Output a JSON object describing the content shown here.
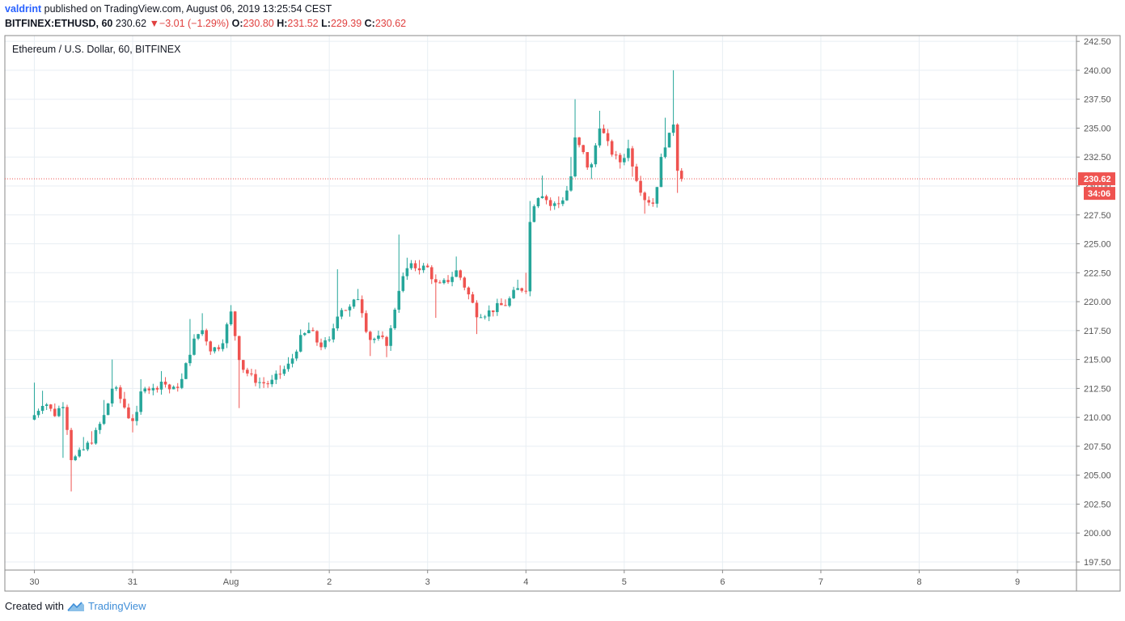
{
  "header": {
    "author": "valdrint",
    "published_text": "published on TradingView.com, August 06, 2019 13:25:54 CEST",
    "symbol": "BITFINEX:ETHUSD, 60",
    "last": "230.62",
    "change_arrow": "▼",
    "change": "−3.01 (−1.29%)",
    "o_label": "O:",
    "o_value": "230.80",
    "h_label": "H:",
    "h_value": "231.52",
    "l_label": "L:",
    "l_value": "229.39",
    "c_label": "C:",
    "c_value": "230.62"
  },
  "footer": {
    "created_with": "Created with",
    "brand": "TradingView",
    "logo_icon": "tradingview-logo-icon"
  },
  "colors": {
    "up": "#26a69a",
    "down": "#ef5350",
    "grid": "#e8eef3",
    "axis": "#555555",
    "price_tag": "#ef5350",
    "author": "#2962ff",
    "change_negative": "#e0403f"
  },
  "chart_data": {
    "type": "candlestick",
    "title": "Ethereum / U.S. Dollar, 60, BITFINEX",
    "x_unit": "days since Jul 30 2019 00:00",
    "x_tick_labels": [
      "30",
      "31",
      "Aug",
      "2",
      "3",
      "4",
      "5",
      "6",
      "7",
      "8",
      "9"
    ],
    "x_tick_values": [
      0,
      1,
      2,
      3,
      4,
      5,
      6,
      7,
      8,
      9,
      10
    ],
    "xlim": [
      -0.3,
      10.6
    ],
    "ylim": [
      196.8,
      243
    ],
    "y_ticks": [
      197.5,
      200,
      202.5,
      205,
      207.5,
      210,
      212.5,
      215,
      217.5,
      220,
      222.5,
      225,
      227.5,
      230,
      232.5,
      235,
      237.5,
      240,
      242.5
    ],
    "y_tick_labels": [
      "197.50",
      "200.00",
      "202.50",
      "205.00",
      "207.50",
      "210.00",
      "212.50",
      "215.00",
      "217.50",
      "220.00",
      "222.50",
      "225.00",
      "227.50",
      "230.00",
      "232.50",
      "235.00",
      "237.50",
      "240.00",
      "242.50"
    ],
    "grid": true,
    "last_price": 230.62,
    "last_price_label": "230.62",
    "countdown_label": "34:06",
    "anchors": [
      [
        0,
        210.2,
        213
      ],
      [
        0.1,
        211.5,
        212.3
      ],
      [
        0.2,
        210.2,
        211.2
      ],
      [
        0.3,
        211.3,
        206.5
      ],
      [
        0.38,
        206.2,
        203.6
      ],
      [
        0.5,
        207.2,
        208.3
      ],
      [
        0.6,
        208.2,
        208.8
      ],
      [
        0.72,
        210.3,
        211.5
      ],
      [
        0.8,
        212.8,
        215
      ],
      [
        0.9,
        211.2,
        212.2
      ],
      [
        0.98,
        209.7,
        208.7
      ],
      [
        1.05,
        210.2,
        211
      ],
      [
        1.1,
        213,
        213.3
      ],
      [
        1.2,
        212.3,
        212.9
      ],
      [
        1.3,
        213.2,
        214
      ],
      [
        1.4,
        212.2,
        212.5
      ],
      [
        1.5,
        213.2,
        213.8
      ],
      [
        1.6,
        216.2,
        218.5
      ],
      [
        1.7,
        217.7,
        219
      ],
      [
        1.8,
        215.8,
        215.4
      ],
      [
        1.9,
        216.3,
        216.7
      ],
      [
        2.0,
        219,
        219.7
      ],
      [
        2.1,
        214.5,
        210.8
      ],
      [
        2.2,
        213.5,
        214.2
      ],
      [
        2.3,
        213,
        212.5
      ],
      [
        2.4,
        212.9,
        213.4
      ],
      [
        2.5,
        213.8,
        214.5
      ],
      [
        2.6,
        214.6,
        215.2
      ],
      [
        2.7,
        216.7,
        217.6
      ],
      [
        2.8,
        217.6,
        218.2
      ],
      [
        2.9,
        216.2,
        215.8
      ],
      [
        3.0,
        216.5,
        217
      ],
      [
        3.1,
        219.5,
        222.8
      ],
      [
        3.2,
        219.3,
        218.7
      ],
      [
        3.3,
        220.5,
        221.1
      ],
      [
        3.4,
        216.8,
        215.3
      ],
      [
        3.5,
        216.8,
        217.4
      ],
      [
        3.6,
        216.4,
        215.2
      ],
      [
        3.7,
        221,
        225.8
      ],
      [
        3.8,
        223,
        223.8
      ],
      [
        3.9,
        223,
        223.6
      ],
      [
        4.0,
        222.9,
        223.3
      ],
      [
        4.1,
        221.2,
        218.6
      ],
      [
        4.2,
        221.8,
        222.3
      ],
      [
        4.3,
        222.7,
        223.9
      ],
      [
        4.4,
        220.9,
        220.2
      ],
      [
        4.5,
        219,
        217.2
      ],
      [
        4.6,
        219,
        218.7
      ],
      [
        4.7,
        219.5,
        219.8
      ],
      [
        4.8,
        219.8,
        220.2
      ],
      [
        4.9,
        221,
        221.9
      ],
      [
        5.0,
        221.2,
        222.5
      ],
      [
        5.05,
        228,
        228.7
      ],
      [
        5.15,
        229.6,
        230.9
      ],
      [
        5.25,
        228.3,
        228
      ],
      [
        5.35,
        228.5,
        229.1
      ],
      [
        5.45,
        230.2,
        232.5
      ],
      [
        5.5,
        234,
        237.5
      ],
      [
        5.6,
        232.5,
        233.4
      ],
      [
        5.65,
        231,
        230.6
      ],
      [
        5.75,
        235.3,
        236.5
      ],
      [
        5.85,
        233.2,
        234
      ],
      [
        5.95,
        232,
        231.5
      ],
      [
        6.05,
        233.3,
        234
      ],
      [
        6.1,
        231.3,
        230.8
      ],
      [
        6.2,
        229,
        227.6
      ],
      [
        6.3,
        228.5,
        228.2
      ],
      [
        6.4,
        233.5,
        235.9
      ],
      [
        6.45,
        234,
        234.6
      ],
      [
        6.5,
        235.5,
        240
      ],
      [
        6.55,
        230.8,
        229.4
      ],
      [
        6.6,
        230.62,
        231.52
      ]
    ]
  }
}
